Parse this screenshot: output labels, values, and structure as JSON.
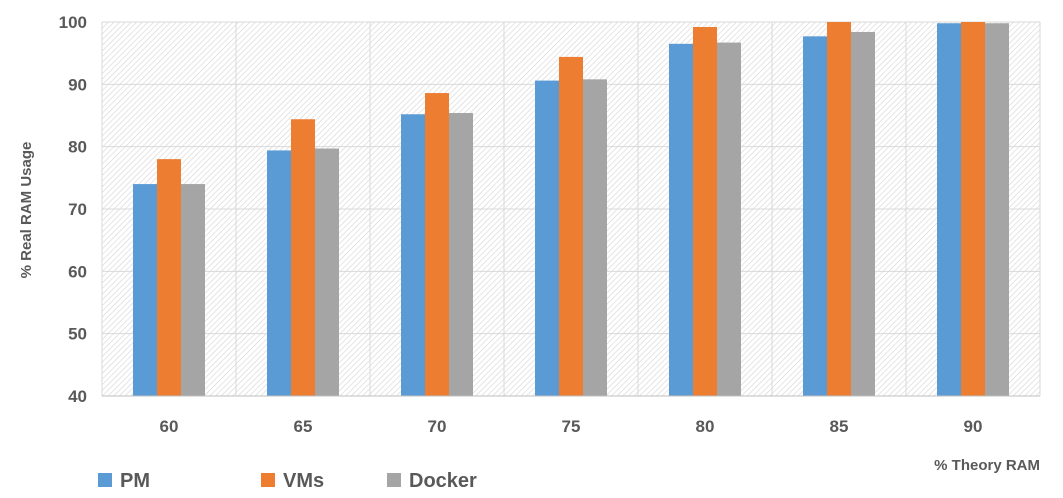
{
  "chart_data": {
    "type": "bar",
    "categories": [
      "60",
      "65",
      "70",
      "75",
      "80",
      "85",
      "90"
    ],
    "series": [
      {
        "name": "PM",
        "color": "#5b9bd5",
        "values": [
          74.0,
          79.4,
          85.2,
          90.6,
          96.5,
          97.7,
          99.8
        ]
      },
      {
        "name": "VMs",
        "color": "#ed7d31",
        "values": [
          78.0,
          84.4,
          88.6,
          94.4,
          99.2,
          100.0,
          100.0
        ]
      },
      {
        "name": "Docker",
        "color": "#a5a5a5",
        "values": [
          74.0,
          79.7,
          85.4,
          90.8,
          96.7,
          98.4,
          99.8
        ]
      }
    ],
    "xlabel": "% Theory RAM",
    "ylabel": "% Real RAM Usage",
    "ylim": [
      40,
      100
    ],
    "yticks": [
      40,
      50,
      60,
      70,
      80,
      90,
      100
    ],
    "grid": true,
    "legend_position": "bottom-left",
    "plot_background": "hatched"
  }
}
